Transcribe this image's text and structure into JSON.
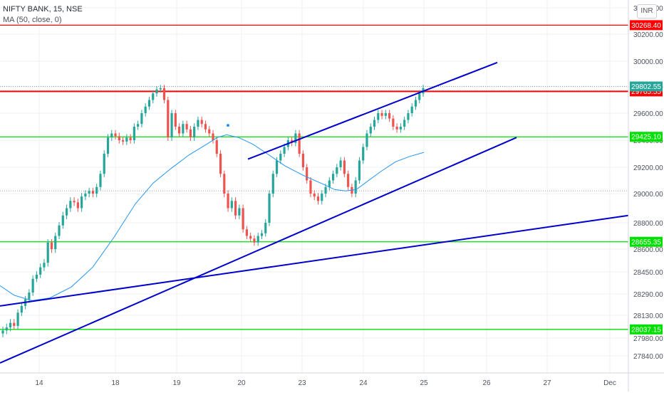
{
  "header": {
    "symbol_line": "NIFTY BANK, 15, NSE",
    "indicator_line": "MA (50, close, 0)"
  },
  "currency_button": "INR",
  "chart_data": {
    "type": "candlestick",
    "title": "NIFTY BANK, 15, NSE",
    "indicator": "MA (50, close, 0)",
    "ylim": [
      27760,
      30360
    ],
    "y_ticks": [
      27840,
      27980,
      28130,
      28290,
      28450,
      28600,
      28800,
      29000,
      29200,
      29400,
      29600,
      29800,
      30000,
      30200,
      30400
    ],
    "y_tick_labels": [
      "27840.00",
      "27980.00",
      "28130.00",
      "28290.00",
      "28450.00",
      "28600.00",
      "28800.00",
      "29000.00",
      "29200.00",
      "29400.00",
      "29600.00",
      "29800.00",
      "30000.00",
      "30200.00",
      "30400.00"
    ],
    "x_ticks": [
      "14",
      "18",
      "19",
      "20",
      "23",
      "24",
      "25",
      "26",
      "27",
      "Dec"
    ],
    "colors": {
      "up": "#26a69a",
      "down": "#ef5350",
      "ma": "#2196f3",
      "trend": "#0000cc",
      "resistance": "#ff0000",
      "support": "#00e000",
      "last_price_tag": "#26a69a",
      "grid": "#eef0f3"
    },
    "horizontal_levels": [
      {
        "value": 30268.4,
        "label": "30268.40",
        "kind": "resistance"
      },
      {
        "value": 29765.55,
        "label": "29765.55",
        "kind": "resistance"
      },
      {
        "value": 29425.1,
        "label": "29425.10",
        "kind": "support"
      },
      {
        "value": 28655.35,
        "label": "28655.35",
        "kind": "support"
      },
      {
        "value": 28037.15,
        "label": "28037.15",
        "kind": "support"
      }
    ],
    "last_price": {
      "value": 29802.55,
      "label": "29802.55"
    },
    "trendlines": [
      {
        "name": "upper-channel",
        "from": [
          348,
          29260
        ],
        "to": [
          698,
          29990
        ]
      },
      {
        "name": "rising-support",
        "from": [
          0,
          27790
        ],
        "to": [
          725,
          29420
        ]
      },
      {
        "name": "long-support",
        "from": [
          0,
          28200
        ],
        "to": [
          882,
          28850
        ]
      }
    ],
    "ma_points": [
      [
        0,
        28350
      ],
      [
        20,
        28280
      ],
      [
        45,
        28240
      ],
      [
        70,
        28260
      ],
      [
        100,
        28340
      ],
      [
        130,
        28480
      ],
      [
        160,
        28690
      ],
      [
        190,
        28930
      ],
      [
        215,
        29080
      ],
      [
        240,
        29190
      ],
      [
        265,
        29290
      ],
      [
        290,
        29370
      ],
      [
        305,
        29420
      ],
      [
        318,
        29440
      ],
      [
        335,
        29420
      ],
      [
        355,
        29370
      ],
      [
        375,
        29300
      ],
      [
        400,
        29210
      ],
      [
        425,
        29140
      ],
      [
        450,
        29080
      ],
      [
        470,
        29030
      ],
      [
        485,
        29020
      ],
      [
        500,
        29030
      ],
      [
        515,
        29090
      ],
      [
        535,
        29170
      ],
      [
        555,
        29240
      ],
      [
        575,
        29280
      ],
      [
        595,
        29310
      ]
    ],
    "closes": [
      28030,
      28050,
      28080,
      28060,
      28150,
      28200,
      28250,
      28300,
      28400,
      28430,
      28480,
      28510,
      28650,
      28600,
      28700,
      28780,
      28850,
      28900,
      28950,
      28940,
      28900,
      28980,
      29000,
      29020,
      29000,
      29050,
      29150,
      29300,
      29420,
      29450,
      29430,
      29400,
      29390,
      29420,
      29400,
      29500,
      29520,
      29600,
      29650,
      29700,
      29750,
      29780,
      29790,
      29700,
      29420,
      29600,
      29500,
      29450,
      29520,
      29480,
      29420,
      29500,
      29550,
      29520,
      29480,
      29450,
      29400,
      29300,
      29150,
      29000,
      28900,
      28950,
      28850,
      28900,
      28750,
      28700,
      28680,
      28650,
      28700,
      28720,
      28800,
      29000,
      29150,
      29250,
      29300,
      29350,
      29400,
      29380,
      29450,
      29300,
      29200,
      29100,
      29000,
      28980,
      28950,
      29000,
      29050,
      29100,
      29150,
      29200,
      29250,
      29150,
      29050,
      29000,
      29100,
      29250,
      29350,
      29450,
      29500,
      29550,
      29600,
      29580,
      29600,
      29560,
      29500,
      29480,
      29500,
      29550,
      29600,
      29650,
      29700,
      29750,
      29790
    ]
  }
}
